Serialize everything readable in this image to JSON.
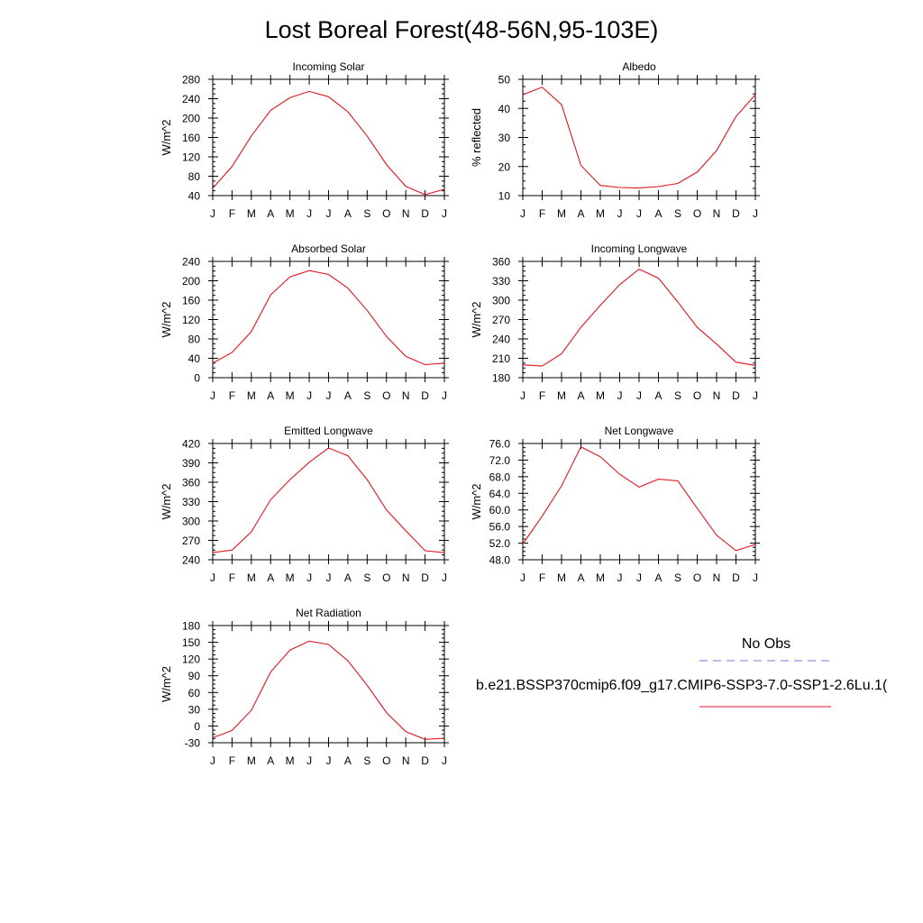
{
  "title": "Lost Boreal Forest(48-56N,95-103E)",
  "months": [
    "J",
    "F",
    "M",
    "A",
    "M",
    "J",
    "J",
    "A",
    "S",
    "O",
    "N",
    "D",
    "J"
  ],
  "line_color": "#e0141e",
  "obs_line_color": "#7777dd",
  "legend": {
    "obs_label": "No Obs",
    "case_label": "b.e21.BSSP370cmip6.f09_g17.CMIP6-SSP3-7.0-SSP1-2.6Lu.1("
  },
  "chart_data": [
    {
      "type": "line",
      "title": "Incoming Solar",
      "ylabel": "W/m^2",
      "ylim": [
        40,
        280
      ],
      "yticks": [
        "40",
        "80",
        "120",
        "160",
        "200",
        "240",
        "280"
      ],
      "values": [
        55,
        100,
        163,
        216,
        242,
        255,
        244,
        213,
        163,
        104,
        59,
        42,
        53
      ]
    },
    {
      "type": "line",
      "title": "Albedo",
      "ylabel": "% reflected",
      "ylim": [
        10,
        50
      ],
      "yticks": [
        "10",
        "20",
        "30",
        "40",
        "50"
      ],
      "values": [
        44.7,
        47.3,
        41.3,
        20.4,
        13.5,
        12.8,
        12.6,
        13.1,
        14.2,
        18.1,
        25.5,
        37.2,
        44.7
      ]
    },
    {
      "type": "line",
      "title": "Absorbed Solar",
      "ylabel": "W/m^2",
      "ylim": [
        0,
        240
      ],
      "yticks": [
        "0",
        "40",
        "80",
        "120",
        "160",
        "200",
        "240"
      ],
      "values": [
        30,
        52,
        95,
        171,
        208,
        221,
        213,
        185,
        139,
        85,
        44,
        27,
        30
      ]
    },
    {
      "type": "line",
      "title": "Incoming Longwave",
      "ylabel": "W/m^2",
      "ylim": [
        180,
        360
      ],
      "yticks": [
        "180",
        "210",
        "240",
        "270",
        "300",
        "330",
        "360"
      ],
      "values": [
        200,
        198,
        217,
        258,
        292,
        324,
        348,
        334,
        297,
        258,
        232,
        204,
        199
      ]
    },
    {
      "type": "line",
      "title": "Emitted Longwave",
      "ylabel": "W/m^2",
      "ylim": [
        240,
        420
      ],
      "yticks": [
        "240",
        "270",
        "300",
        "330",
        "360",
        "390",
        "420"
      ],
      "values": [
        251,
        255,
        283,
        333,
        364,
        391,
        413,
        401,
        364,
        317,
        285,
        254,
        251
      ]
    },
    {
      "type": "line",
      "title": "Net Longwave",
      "ylabel": "W/m^2",
      "ylim": [
        48,
        76
      ],
      "yticks": [
        "48.0",
        "52.0",
        "56.0",
        "60.0",
        "64.0",
        "68.0",
        "72.0",
        "76.0"
      ],
      "values": [
        51.8,
        58.5,
        65.8,
        75.2,
        72.8,
        68.6,
        65.5,
        67.4,
        67.0,
        60.4,
        53.9,
        50.2,
        51.7
      ]
    },
    {
      "type": "line",
      "title": "Net Radiation",
      "ylabel": "W/m^2",
      "ylim": [
        -30,
        180
      ],
      "yticks": [
        "-30",
        "0",
        "30",
        "60",
        "90",
        "120",
        "150",
        "180"
      ],
      "values": [
        -21,
        -8,
        28,
        97,
        136,
        152,
        146,
        117,
        73,
        24,
        -10,
        -24,
        -22
      ]
    }
  ]
}
